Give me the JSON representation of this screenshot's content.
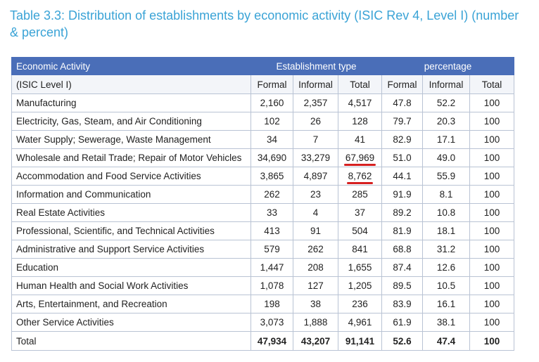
{
  "caption": "Table 3.3: Distribution of establishments by economic activity (ISIC Rev 4, Level I) (number & percent)",
  "header": {
    "activity": "Economic Activity",
    "group_establishment": "Establishment type",
    "group_percentage": "percentage",
    "sub_activity": "(ISIC Level I)",
    "formal": "Formal",
    "informal": "Informal",
    "total": "Total"
  },
  "rows": [
    {
      "activity": "Manufacturing",
      "formal": "2,160",
      "informal": "2,357",
      "total": "4,517",
      "pct_formal": "47.8",
      "pct_informal": "52.2",
      "pct_total": "100"
    },
    {
      "activity": "Electricity, Gas, Steam, and Air Conditioning",
      "formal": "102",
      "informal": "26",
      "total": "128",
      "pct_formal": "79.7",
      "pct_informal": "20.3",
      "pct_total": "100"
    },
    {
      "activity": "Water Supply; Sewerage, Waste Management",
      "formal": "34",
      "informal": "7",
      "total": "41",
      "pct_formal": "82.9",
      "pct_informal": "17.1",
      "pct_total": "100"
    },
    {
      "activity": "Wholesale and Retail Trade; Repair of Motor Vehicles",
      "formal": "34,690",
      "informal": "33,279",
      "total": "67,969",
      "pct_formal": "51.0",
      "pct_informal": "49.0",
      "pct_total": "100"
    },
    {
      "activity": "Accommodation and Food Service Activities",
      "formal": "3,865",
      "informal": "4,897",
      "total": "8,762",
      "pct_formal": "44.1",
      "pct_informal": "55.9",
      "pct_total": "100"
    },
    {
      "activity": "Information and Communication",
      "formal": "262",
      "informal": "23",
      "total": "285",
      "pct_formal": "91.9",
      "pct_informal": "8.1",
      "pct_total": "100"
    },
    {
      "activity": "Real Estate Activities",
      "formal": "33",
      "informal": "4",
      "total": "37",
      "pct_formal": "89.2",
      "pct_informal": "10.8",
      "pct_total": "100"
    },
    {
      "activity": "Professional, Scientific, and Technical Activities",
      "formal": "413",
      "informal": "91",
      "total": "504",
      "pct_formal": "81.9",
      "pct_informal": "18.1",
      "pct_total": "100"
    },
    {
      "activity": "Administrative and Support Service Activities",
      "formal": "579",
      "informal": "262",
      "total": "841",
      "pct_formal": "68.8",
      "pct_informal": "31.2",
      "pct_total": "100"
    },
    {
      "activity": "Education",
      "formal": "1,447",
      "informal": "208",
      "total": "1,655",
      "pct_formal": "87.4",
      "pct_informal": "12.6",
      "pct_total": "100"
    },
    {
      "activity": "Human Health and Social Work Activities",
      "formal": "1,078",
      "informal": "127",
      "total": "1,205",
      "pct_formal": "89.5",
      "pct_informal": "10.5",
      "pct_total": "100"
    },
    {
      "activity": "Arts, Entertainment, and Recreation",
      "formal": "198",
      "informal": "38",
      "total": "236",
      "pct_formal": "83.9",
      "pct_informal": "16.1",
      "pct_total": "100"
    },
    {
      "activity": "Other Service Activities",
      "formal": "3,073",
      "informal": "1,888",
      "total": "4,961",
      "pct_formal": "61.9",
      "pct_informal": "38.1",
      "pct_total": "100"
    }
  ],
  "total_row": {
    "activity": "Total",
    "formal": "47,934",
    "informal": "43,207",
    "total": "91,141",
    "pct_formal": "52.6",
    "pct_informal": "47.4",
    "pct_total": "100"
  },
  "colors": {
    "caption": "#3aa3d6",
    "header_bg": "#4a6eb8",
    "underline_mark": "#d62020"
  }
}
